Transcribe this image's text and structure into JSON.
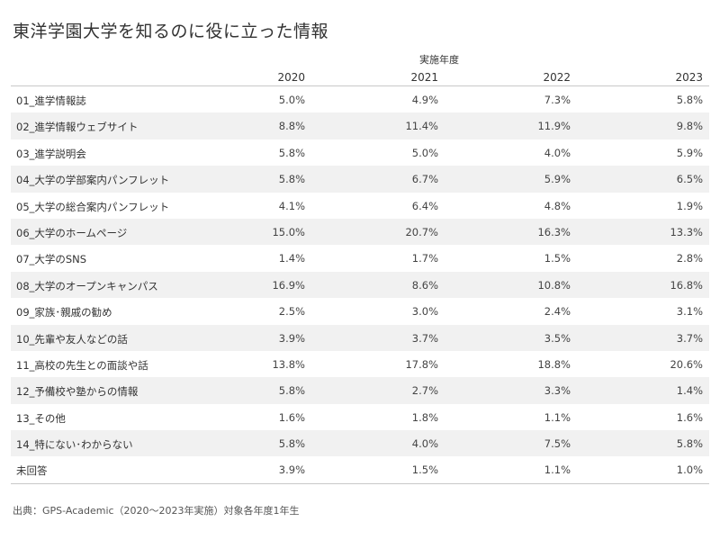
{
  "title": "東洋学園大学を知るのに役に立った情報",
  "source": "出典：GPS-Academic（2020〜2023年実施）対象各年度1年生",
  "chart_data": {
    "type": "table",
    "column_group_label": "実施年度",
    "columns": [
      "2020",
      "2021",
      "2022",
      "2023"
    ],
    "rows": [
      {
        "label": "01_進学情報誌",
        "values": [
          "5.0%",
          "4.9%",
          "7.3%",
          "5.8%"
        ]
      },
      {
        "label": "02_進学情報ウェブサイト",
        "values": [
          "8.8%",
          "11.4%",
          "11.9%",
          "9.8%"
        ]
      },
      {
        "label": "03_進学説明会",
        "values": [
          "5.8%",
          "5.0%",
          "4.0%",
          "5.9%"
        ]
      },
      {
        "label": "04_大学の学部案内パンフレット",
        "values": [
          "5.8%",
          "6.7%",
          "5.9%",
          "6.5%"
        ]
      },
      {
        "label": "05_大学の総合案内パンフレット",
        "values": [
          "4.1%",
          "6.4%",
          "4.8%",
          "1.9%"
        ]
      },
      {
        "label": "06_大学のホームページ",
        "values": [
          "15.0%",
          "20.7%",
          "16.3%",
          "13.3%"
        ]
      },
      {
        "label": "07_大学のSNS",
        "values": [
          "1.4%",
          "1.7%",
          "1.5%",
          "2.8%"
        ]
      },
      {
        "label": "08_大学のオープンキャンパス",
        "values": [
          "16.9%",
          "8.6%",
          "10.8%",
          "16.8%"
        ]
      },
      {
        "label": "09_家族･親戚の勧め",
        "values": [
          "2.5%",
          "3.0%",
          "2.4%",
          "3.1%"
        ]
      },
      {
        "label": "10_先輩や友人などの話",
        "values": [
          "3.9%",
          "3.7%",
          "3.5%",
          "3.7%"
        ]
      },
      {
        "label": "11_高校の先生との面談や話",
        "values": [
          "13.8%",
          "17.8%",
          "18.8%",
          "20.6%"
        ]
      },
      {
        "label": "12_予備校や塾からの情報",
        "values": [
          "5.8%",
          "2.7%",
          "3.3%",
          "1.4%"
        ]
      },
      {
        "label": "13_その他",
        "values": [
          "1.6%",
          "1.8%",
          "1.1%",
          "1.6%"
        ]
      },
      {
        "label": "14_特にない･わからない",
        "values": [
          "5.8%",
          "4.0%",
          "7.5%",
          "5.8%"
        ]
      },
      {
        "label": "未回答",
        "values": [
          "3.9%",
          "1.5%",
          "1.1%",
          "1.0%"
        ]
      }
    ]
  }
}
